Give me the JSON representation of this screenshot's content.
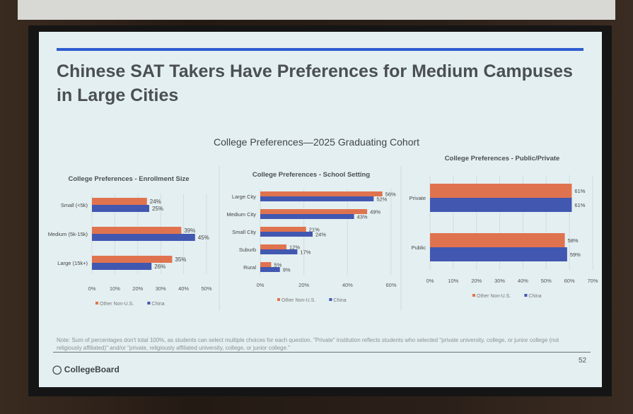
{
  "slide": {
    "title": "Chinese SAT Takers Have Preferences for Medium Campuses in Large Cities",
    "supertitle": "College Preferences—2025 Graduating Cohort",
    "note": "Note: Sum of percentages don't total 100%, as students can select multiple choices for each question. \"Private\" institution reflects students who selected \"private university, college, or junior college (not religiously affiliated)\" and/or \"private, religiously affiliated university, college, or junior college.\"",
    "page_number": "52",
    "logo_text": "CollegeBoard",
    "accent_color": "#2f5bd0"
  },
  "colors": {
    "Other Non-U.S.": "#e0734f",
    "China": "#4257b0"
  },
  "chart_data": [
    {
      "type": "bar",
      "orientation": "horizontal",
      "title": "College Preferences - Enrollment Size",
      "categories": [
        "Small (<5k)",
        "Medium (5k-15k)",
        "Large (15k+)"
      ],
      "series": [
        {
          "name": "Other Non-U.S.",
          "values": [
            24,
            39,
            35
          ],
          "labels": [
            "24%",
            "39%",
            "35%"
          ]
        },
        {
          "name": "China",
          "values": [
            25,
            45,
            26
          ],
          "labels": [
            "25%",
            "45%",
            "26%"
          ]
        }
      ],
      "xlim": [
        0,
        50
      ],
      "ticks": [
        "0%",
        "10%",
        "20%",
        "30%",
        "40%",
        "50%"
      ],
      "legend": "bottom"
    },
    {
      "type": "bar",
      "orientation": "horizontal",
      "title": "College Preferences - School Setting",
      "categories": [
        "Large City",
        "Medium City",
        "Small City",
        "Suburb",
        "Rural"
      ],
      "series": [
        {
          "name": "Other Non-U.S.",
          "values": [
            56,
            49,
            21,
            12,
            5
          ],
          "labels": [
            "56%",
            "49%",
            "21%",
            "12%",
            "5%"
          ]
        },
        {
          "name": "China",
          "values": [
            52,
            43,
            24,
            17,
            9
          ],
          "labels": [
            "52%",
            "43%",
            "24%",
            "17%",
            "9%"
          ]
        }
      ],
      "xlim": [
        0,
        60
      ],
      "ticks": [
        "0%",
        "20%",
        "40%",
        "60%"
      ],
      "legend": "bottom"
    },
    {
      "type": "bar",
      "orientation": "horizontal",
      "title": "College Preferences - Public/Private",
      "categories": [
        "Private",
        "Public"
      ],
      "series": [
        {
          "name": "Other Non-U.S.",
          "values": [
            61,
            58
          ],
          "labels": [
            "61%",
            "58%"
          ]
        },
        {
          "name": "China",
          "values": [
            61,
            59
          ],
          "labels": [
            "61%",
            "59%"
          ]
        }
      ],
      "xlim": [
        0,
        70
      ],
      "ticks": [
        "0%",
        "10%",
        "20%",
        "30%",
        "40%",
        "50%",
        "60%",
        "70%"
      ],
      "legend": "bottom"
    }
  ]
}
